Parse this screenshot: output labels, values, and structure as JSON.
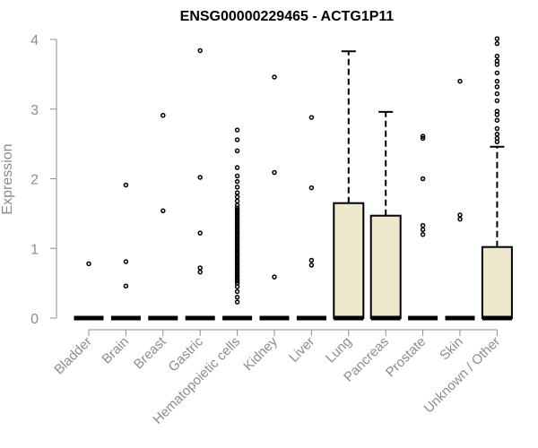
{
  "chart_data": {
    "type": "box",
    "title": "ENSG00000229465 - ACTG1P11",
    "xlabel": "",
    "ylabel": "Expression",
    "ylim": [
      0,
      4
    ],
    "yticks": [
      0,
      1,
      2,
      3,
      4
    ],
    "grid": false,
    "legend": "none",
    "colors": {
      "box_fill": "#eee8cc",
      "stroke": "#000000",
      "axis": "#8c8c8c"
    },
    "categories": [
      "Bladder",
      "Brain",
      "Breast",
      "Gastric",
      "Hematopoietic cells",
      "Kidney",
      "Liver",
      "Lung",
      "Pancreas",
      "Prostate",
      "Skin",
      "Unknown / Other"
    ],
    "boxes": [
      {
        "category": "Bladder",
        "q1": 0,
        "median": 0,
        "q3": 0,
        "whisker_low": 0,
        "whisker_high": 0,
        "outliers": [
          0.78
        ]
      },
      {
        "category": "Brain",
        "q1": 0,
        "median": 0,
        "q3": 0,
        "whisker_low": 0,
        "whisker_high": 0,
        "outliers": [
          1.91,
          0.81,
          0.46
        ]
      },
      {
        "category": "Breast",
        "q1": 0,
        "median": 0,
        "q3": 0,
        "whisker_low": 0,
        "whisker_high": 0,
        "outliers": [
          2.91,
          1.54
        ]
      },
      {
        "category": "Gastric",
        "q1": 0,
        "median": 0,
        "q3": 0,
        "whisker_low": 0,
        "whisker_high": 0,
        "outliers": [
          3.84,
          2.02,
          1.22,
          0.72,
          0.66
        ]
      },
      {
        "category": "Hematopoietic cells",
        "q1": 0,
        "median": 0,
        "q3": 0,
        "whisker_low": 0,
        "whisker_high": 0,
        "outliers": [
          2.7,
          2.56,
          2.4,
          2.16,
          2.04,
          1.96,
          1.88,
          1.8,
          1.74,
          1.68,
          1.62,
          1.58,
          1.55,
          1.52,
          1.49,
          1.46,
          1.43,
          1.4,
          1.37,
          1.34,
          1.31,
          1.28,
          1.25,
          1.22,
          1.19,
          1.16,
          1.13,
          1.1,
          1.07,
          1.04,
          1.01,
          0.98,
          0.95,
          0.92,
          0.89,
          0.86,
          0.83,
          0.8,
          0.77,
          0.74,
          0.71,
          0.68,
          0.65,
          0.62,
          0.59,
          0.56,
          0.53,
          0.5,
          0.45,
          0.38,
          0.3,
          0.23
        ]
      },
      {
        "category": "Kidney",
        "q1": 0,
        "median": 0,
        "q3": 0,
        "whisker_low": 0,
        "whisker_high": 0,
        "outliers": [
          3.46,
          2.09,
          0.59
        ]
      },
      {
        "category": "Liver",
        "q1": 0,
        "median": 0,
        "q3": 0,
        "whisker_low": 0,
        "whisker_high": 0,
        "outliers": [
          2.88,
          1.87,
          0.83,
          0.76
        ]
      },
      {
        "category": "Lung",
        "q1": 0,
        "median": 0,
        "q3": 1.65,
        "whisker_low": 0,
        "whisker_high": 3.83,
        "outliers": []
      },
      {
        "category": "Pancreas",
        "q1": 0,
        "median": 0,
        "q3": 1.47,
        "whisker_low": 0,
        "whisker_high": 2.96,
        "outliers": []
      },
      {
        "category": "Prostate",
        "q1": 0,
        "median": 0,
        "q3": 0,
        "whisker_low": 0,
        "whisker_high": 0,
        "outliers": [
          2.61,
          2.58,
          2.0,
          1.33,
          1.27,
          1.2
        ]
      },
      {
        "category": "Skin",
        "q1": 0,
        "median": 0,
        "q3": 0,
        "whisker_low": 0,
        "whisker_high": 0,
        "outliers": [
          3.4,
          1.48,
          1.42
        ]
      },
      {
        "category": "Unknown / Other",
        "q1": 0,
        "median": 0,
        "q3": 1.02,
        "whisker_low": 0,
        "whisker_high": 2.46,
        "outliers": [
          4.01,
          3.94,
          3.76,
          3.69,
          3.64,
          3.52,
          3.4,
          3.32,
          3.22,
          3.12,
          2.97,
          2.92,
          2.84,
          2.72,
          2.64,
          2.58,
          2.53
        ]
      }
    ]
  }
}
